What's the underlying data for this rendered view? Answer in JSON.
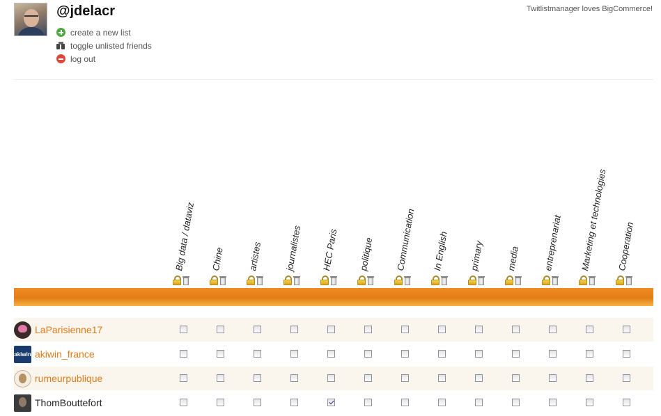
{
  "profile": {
    "handle": "@jdelacr"
  },
  "actions": [
    {
      "label": "create a new list",
      "icon": "plus-circle-icon"
    },
    {
      "label": "toggle unlisted friends",
      "icon": "binoculars-icon"
    },
    {
      "label": "log out",
      "icon": "minus-circle-icon"
    }
  ],
  "promo": "Twitlistmanager loves BigCommerce!",
  "lists": [
    "Big data / dataviz",
    "Chine",
    "artistes",
    "journalistes",
    "HEC Paris",
    "politique",
    "Communication",
    "In English",
    "primary",
    "media",
    "entreprenariat",
    "Marketing et technologies",
    "Cooperation"
  ],
  "avatar_text": {
    "akiwin": "akiwin"
  },
  "friends": [
    {
      "name": "LaParisienne17",
      "checked": []
    },
    {
      "name": "akiwin_france",
      "checked": []
    },
    {
      "name": "rumeurpublique",
      "checked": []
    },
    {
      "name": "ThomBouttefort",
      "checked": [
        "HEC Paris"
      ]
    }
  ],
  "colors": {
    "accent": "#e27e15",
    "link": "#e07b1a"
  }
}
